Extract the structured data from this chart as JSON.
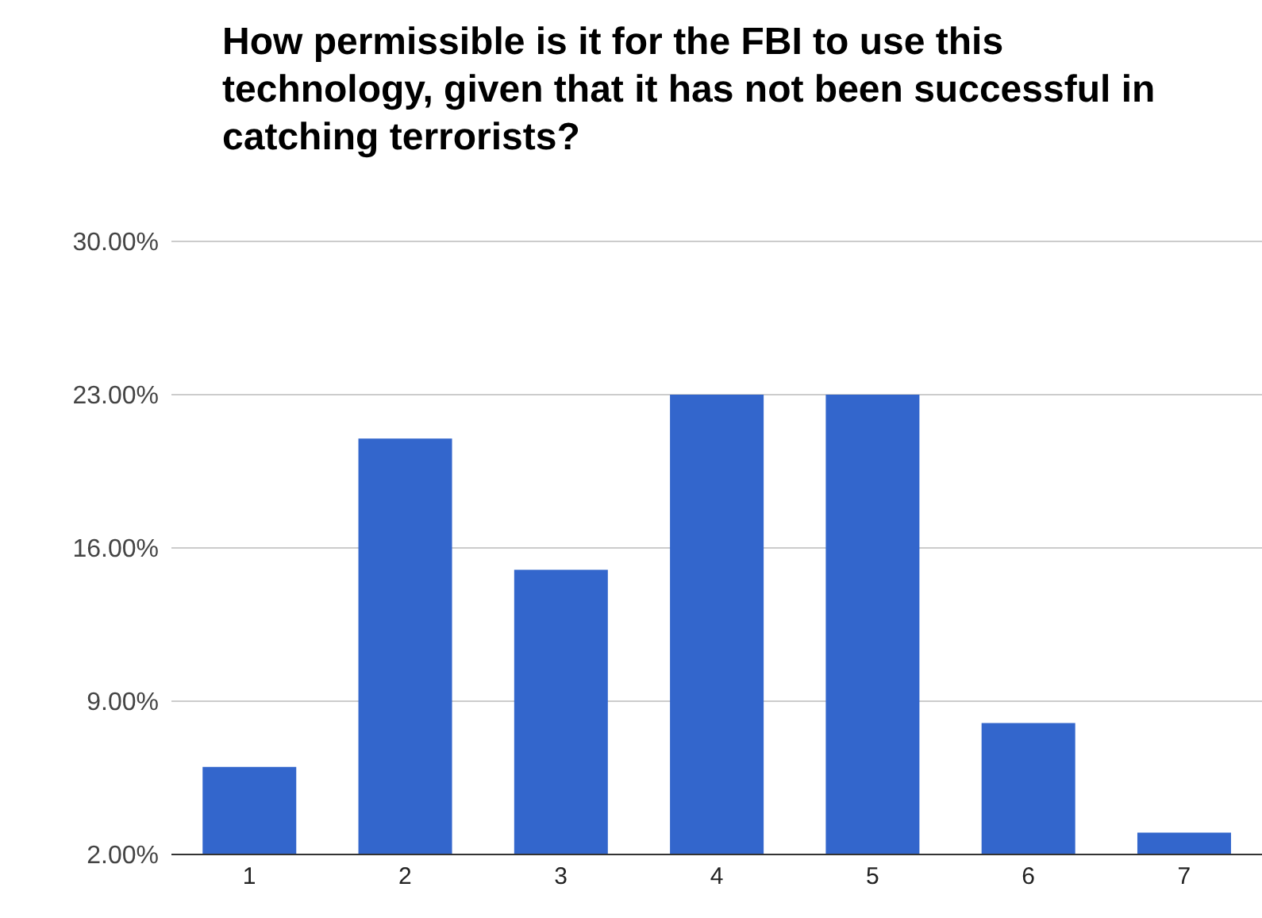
{
  "chart_data": {
    "type": "bar",
    "title": "How permissible is it for the FBI to use this technology, given that it has not been successful in catching terrorists?",
    "categories": [
      "1",
      "2",
      "3",
      "4",
      "5",
      "6",
      "7"
    ],
    "values": [
      6,
      21,
      15,
      23,
      23,
      8,
      3
    ],
    "color": "#3366cc",
    "ylim": [
      2,
      30
    ],
    "yticks": [
      {
        "value": 2,
        "label": "2.00%"
      },
      {
        "value": 9,
        "label": "9.00%"
      },
      {
        "value": 16,
        "label": "16.00%"
      },
      {
        "value": 23,
        "label": "23.00%"
      },
      {
        "value": 30,
        "label": "30.00%"
      }
    ],
    "grid": "y"
  }
}
